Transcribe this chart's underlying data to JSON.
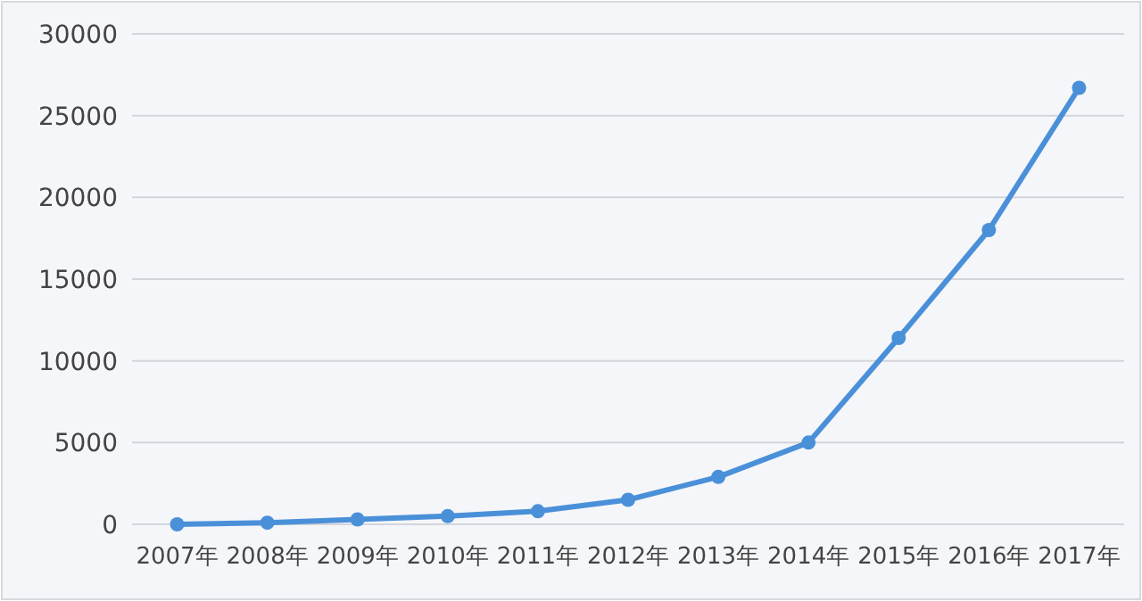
{
  "chart_data": {
    "type": "line",
    "categories": [
      "2007年",
      "2008年",
      "2009年",
      "2010年",
      "2011年",
      "2012年",
      "2013年",
      "2014年",
      "2015年",
      "2016年",
      "2017年"
    ],
    "series": [
      {
        "color": "#4a90d9",
        "values": [
          0,
          100,
          300,
          500,
          800,
          1500,
          2900,
          5000,
          11400,
          18000,
          26700
        ]
      }
    ],
    "ylim": [
      0,
      30000
    ],
    "yticks": [
      0,
      5000,
      10000,
      15000,
      20000,
      25000,
      30000
    ],
    "grid": "y",
    "marker": "circle",
    "line_style": "solid"
  }
}
